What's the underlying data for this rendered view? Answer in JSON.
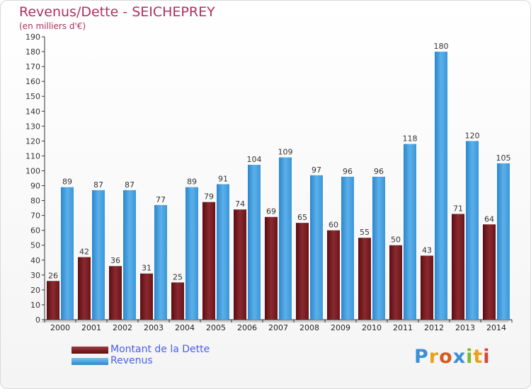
{
  "title": "Revenus/Dette - SEICHEPREY",
  "subtitle": "(en milliers d'€)",
  "chart_data": {
    "type": "bar",
    "title": "Revenus/Dette - SEICHEPREY",
    "ylabel": "(en milliers d'€)",
    "ylim": [
      0,
      190
    ],
    "yticks": [
      0,
      10,
      20,
      30,
      40,
      50,
      60,
      70,
      80,
      90,
      100,
      110,
      120,
      130,
      140,
      150,
      160,
      170,
      180,
      190
    ],
    "grid": false,
    "legend_position": "bottom-left",
    "categories": [
      "2000",
      "2001",
      "2002",
      "2003",
      "2004",
      "2005",
      "2006",
      "2007",
      "2008",
      "2009",
      "2010",
      "2011",
      "2012",
      "2013",
      "2014"
    ],
    "series": [
      {
        "name": "Montant de la Dette",
        "color": "#7a1a1f",
        "values": [
          26,
          42,
          36,
          31,
          25,
          79,
          74,
          69,
          65,
          60,
          55,
          50,
          43,
          71,
          64
        ]
      },
      {
        "name": "Revenus",
        "color": "#4aa3e0",
        "values": [
          89,
          87,
          87,
          77,
          89,
          91,
          104,
          109,
          97,
          96,
          96,
          118,
          180,
          120,
          105
        ]
      }
    ]
  },
  "legend": {
    "debt_label": "Montant de la Dette",
    "revenue_label": "Revenus"
  },
  "logo": {
    "letters": [
      "P",
      "r",
      "o",
      "x",
      "i",
      "t",
      "i"
    ],
    "colors": [
      "#3a8fd8",
      "#e8a21a",
      "#d85a1e",
      "#3a8fd8",
      "#7cba2a",
      "#e8a21a",
      "#d8443a"
    ]
  }
}
